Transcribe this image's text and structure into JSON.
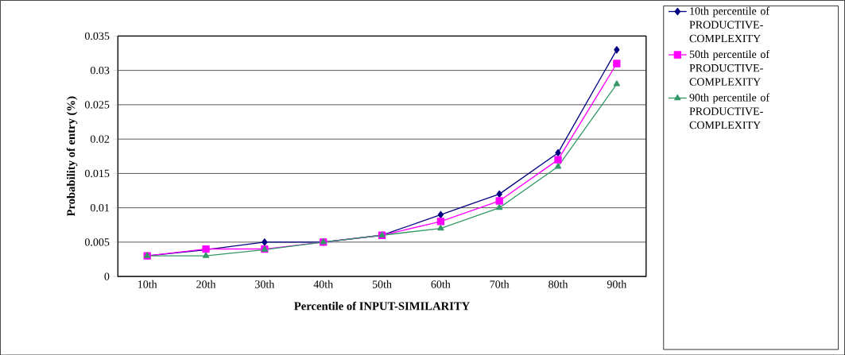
{
  "chart_data": {
    "type": "line",
    "xlabel": "Percentile of INPUT-SIMILARITY",
    "ylabel": "Probability of entry (%)",
    "categories": [
      "10th",
      "20th",
      "30th",
      "40th",
      "50th",
      "60th",
      "70th",
      "80th",
      "90th"
    ],
    "series": [
      {
        "name": "10th percentile of PRODUCTIVE-COMPLEXITY",
        "color": "#000080",
        "marker": "diamond",
        "values": [
          0.003,
          0.0039,
          0.005,
          0.005,
          0.006,
          0.009,
          0.012,
          0.018,
          0.033
        ]
      },
      {
        "name": "50th percentile of PRODUCTIVE-COMPLEXITY",
        "color": "#ff00ff",
        "marker": "square",
        "values": [
          0.003,
          0.004,
          0.004,
          0.005,
          0.006,
          0.008,
          0.011,
          0.017,
          0.031
        ]
      },
      {
        "name": "90th percentile of PRODUCTIVE-COMPLEXITY",
        "color": "#339966",
        "marker": "triangle",
        "values": [
          0.003,
          0.003,
          0.0039,
          0.005,
          0.006,
          0.007,
          0.01,
          0.016,
          0.028
        ]
      }
    ],
    "ylim": [
      0,
      0.035
    ],
    "yticks": [
      0,
      0.005,
      0.01,
      0.015,
      0.02,
      0.025,
      0.03,
      0.035
    ],
    "grid": "y",
    "legend": "right",
    "line_style": "solid"
  }
}
